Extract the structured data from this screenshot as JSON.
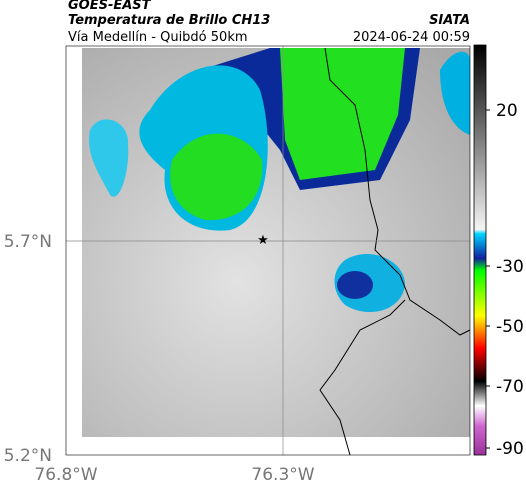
{
  "header": {
    "satellite": "GOES-EAST",
    "product": "Temperatura de Brillo CH13",
    "region": "Vía Medellín - Quibdó 50km",
    "source": "SIATA",
    "timestamp": "2024-06-24 00:59"
  },
  "map": {
    "yticks": [
      "5.7°N",
      "5.2°N"
    ],
    "xticks": [
      "76.8°W",
      "76.3°W"
    ]
  },
  "colorbar": {
    "ticks": [
      20,
      -30,
      -50,
      -70,
      -90
    ]
  }
}
